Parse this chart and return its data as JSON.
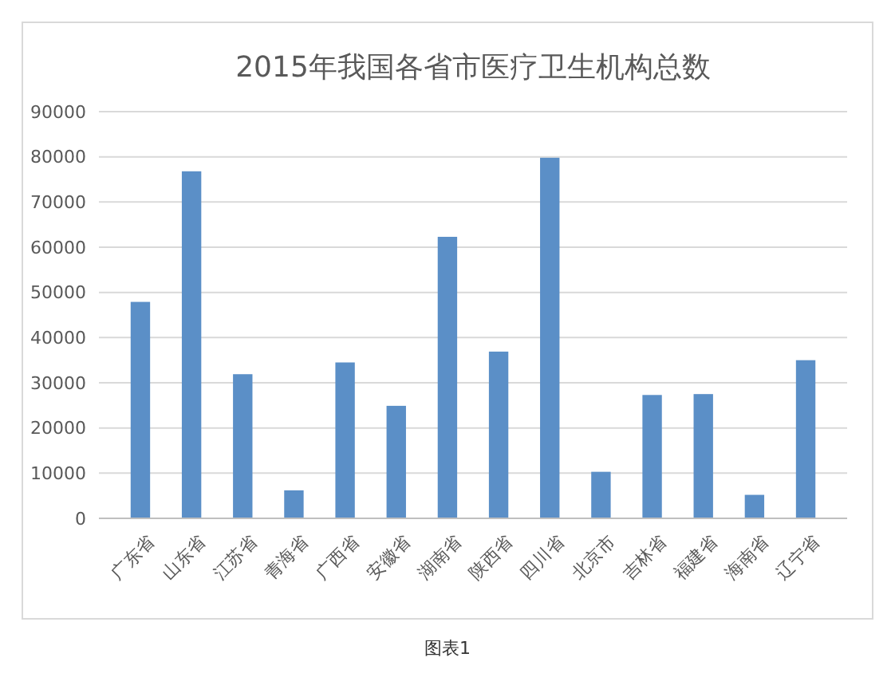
{
  "chart_data": {
    "type": "bar",
    "title": "2015年我国各省市医疗卫生机构总数",
    "categories": [
      "广东省",
      "山东省",
      "江苏省",
      "青海省",
      "广西省",
      "安徽省",
      "湖南省",
      "陕西省",
      "四川省",
      "北京市",
      "吉林省",
      "福建省",
      "海南省",
      "辽宁省"
    ],
    "values": [
      47900,
      76800,
      31900,
      6200,
      34500,
      24900,
      62300,
      36900,
      79800,
      10300,
      27300,
      27500,
      5200,
      35000
    ],
    "color": "#5b8fc7",
    "ylim": [
      0,
      90000
    ],
    "yticks": [
      0,
      10000,
      20000,
      30000,
      40000,
      50000,
      60000,
      70000,
      80000,
      90000
    ],
    "grid": "y",
    "annotations": [
      "图表1"
    ]
  }
}
